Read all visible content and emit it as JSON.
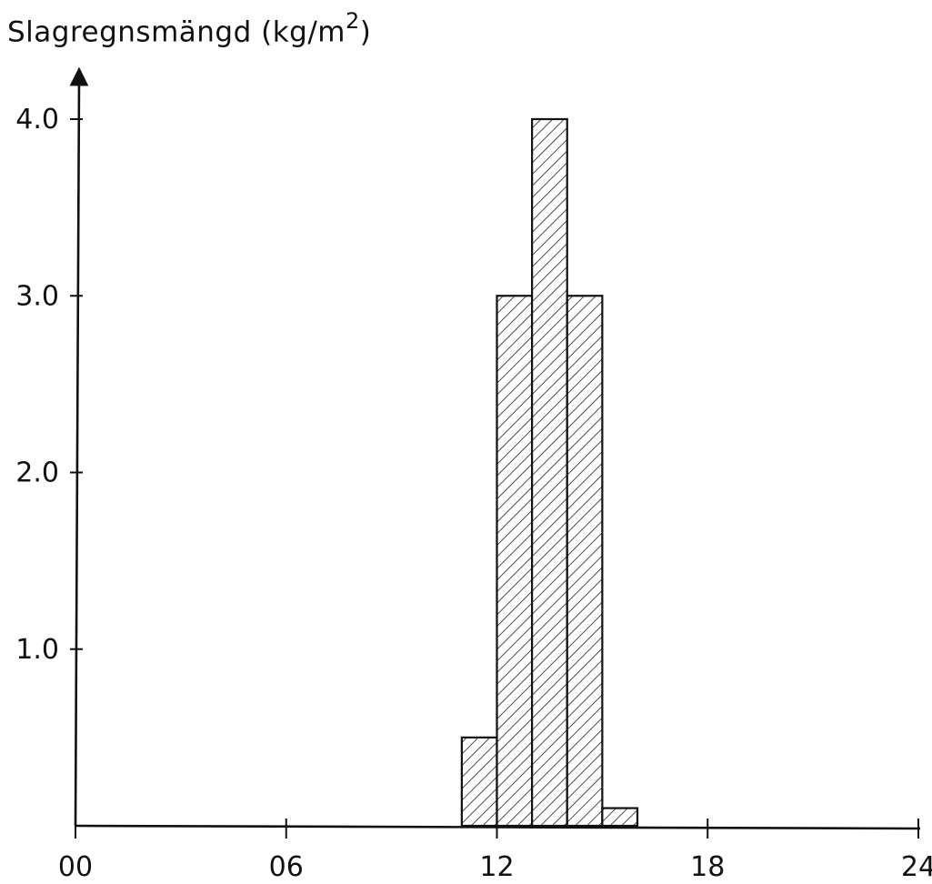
{
  "chart_data": {
    "type": "bar",
    "ylabel_main": "Slagregnsmängd (kg/m",
    "ylabel_sup": "2",
    "ylabel_end": ")",
    "xlabel": "",
    "title": "",
    "xlim": [
      0,
      24
    ],
    "ylim": [
      0,
      4.0
    ],
    "x_ticks": [
      "00",
      "06",
      "12",
      "18",
      "24"
    ],
    "x_tick_values": [
      0,
      6,
      12,
      18,
      24
    ],
    "y_ticks": [
      "1.0",
      "2.0",
      "3.0",
      "4.0"
    ],
    "y_tick_values": [
      1.0,
      2.0,
      3.0,
      4.0
    ],
    "bars": [
      {
        "x_start": 11,
        "x_end": 12,
        "value": 0.5
      },
      {
        "x_start": 12,
        "x_end": 13,
        "value": 3.0
      },
      {
        "x_start": 13,
        "x_end": 14,
        "value": 4.0
      },
      {
        "x_start": 14,
        "x_end": 15,
        "value": 3.0
      },
      {
        "x_start": 15,
        "x_end": 16,
        "value": 0.1
      }
    ],
    "fill": "hatched",
    "grid": false,
    "bar_color": "#111111"
  }
}
